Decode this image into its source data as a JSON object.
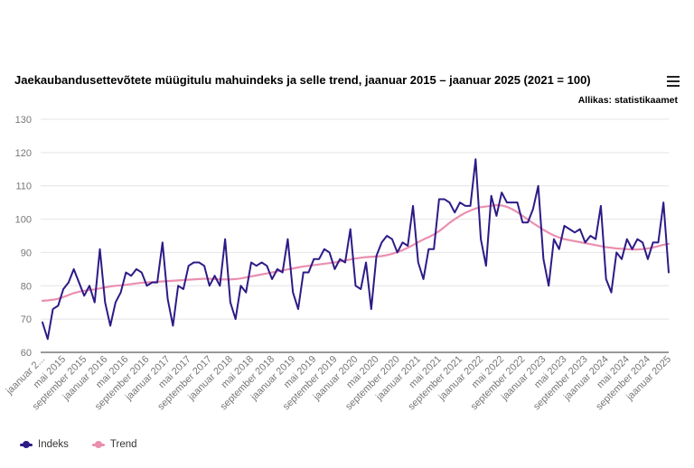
{
  "header": {
    "title": "Jaekaubandusettevõtete müügitulu mahuindeks ja selle trend, jaanuar 2015 – jaanuar 2025 (2021 = 100)",
    "source": "Allikas: statistikaamet",
    "menu_icon": "hamburger-menu-icon"
  },
  "legend": {
    "items": [
      {
        "label": "Indeks",
        "color": "#2e1a87"
      },
      {
        "label": "Trend",
        "color": "#ea8fb0"
      }
    ]
  },
  "chart_data": {
    "type": "line",
    "title": "Jaekaubandusettevõtete müügitulu mahuindeks ja selle trend, jaanuar 2015 – jaanuar 2025 (2021 = 100)",
    "ylim": [
      60,
      130
    ],
    "yticks": [
      60,
      70,
      80,
      90,
      100,
      110,
      120,
      130
    ],
    "x_start": "jaanuar 2015",
    "x_end": "jaanuar 2025",
    "x_tick_labels": [
      "jaanuar 2...",
      "mai 2015",
      "september 2015",
      "jaanuar 2016",
      "mai 2016",
      "september 2016",
      "jaanuar 2017",
      "mai 2017",
      "september 2017",
      "jaanuar 2018",
      "mai 2018",
      "september 2018",
      "jaanuar 2019",
      "mai 2019",
      "september 2019",
      "jaanuar 2020",
      "mai 2020",
      "september 2020",
      "jaanuar 2021",
      "mai 2021",
      "september 2021",
      "jaanuar 2022",
      "mai 2022",
      "september 2022",
      "jaanuar 2023",
      "mai 2023",
      "september 2023",
      "jaanuar 2024",
      "mai 2024",
      "september 2024",
      "jaanuar 2025"
    ],
    "grid": true,
    "legend_position": "bottom-left",
    "series": [
      {
        "name": "Indeks",
        "color": "#2e1a87",
        "values": [
          69,
          64,
          73,
          74,
          79,
          81,
          85,
          81,
          77,
          80,
          75,
          91,
          75,
          68,
          75,
          78,
          84,
          83,
          85,
          84,
          80,
          81,
          81,
          93,
          76,
          68,
          80,
          79,
          86,
          87,
          87,
          86,
          80,
          83,
          80,
          94,
          75,
          70,
          80,
          78,
          87,
          86,
          87,
          86,
          82,
          85,
          84,
          94,
          78,
          73,
          84,
          84,
          88,
          88,
          91,
          90,
          85,
          88,
          87,
          97,
          80,
          79,
          87,
          73,
          89,
          93,
          95,
          94,
          90,
          93,
          92,
          104,
          87,
          82,
          91,
          91,
          106,
          106,
          105,
          102,
          105,
          104,
          104,
          118,
          94,
          86,
          107,
          101,
          108,
          105,
          105,
          105,
          99,
          99,
          103,
          110,
          88,
          80,
          94,
          91,
          98,
          97,
          96,
          97,
          93,
          95,
          94,
          104,
          82,
          78,
          90,
          88,
          94,
          91,
          94,
          93,
          88,
          93,
          93,
          105,
          84
        ]
      },
      {
        "name": "Trend",
        "color": "#ea8fb0",
        "values": [
          75.5,
          75.6,
          75.8,
          76.1,
          76.6,
          77.2,
          77.8,
          78.2,
          78.5,
          78.7,
          78.9,
          79.2,
          79.5,
          79.8,
          80.0,
          80.1,
          80.3,
          80.5,
          80.7,
          80.9,
          81.0,
          81.1,
          81.2,
          81.3,
          81.4,
          81.5,
          81.6,
          81.7,
          81.8,
          81.9,
          82.0,
          82.1,
          82.1,
          82.0,
          81.9,
          81.9,
          81.9,
          82.0,
          82.2,
          82.5,
          82.8,
          83.1,
          83.4,
          83.7,
          84.0,
          84.3,
          84.6,
          84.9,
          85.2,
          85.5,
          85.8,
          86.0,
          86.2,
          86.4,
          86.6,
          86.8,
          87.0,
          87.3,
          87.6,
          87.9,
          88.2,
          88.4,
          88.6,
          88.7,
          88.8,
          88.9,
          89.2,
          89.6,
          90.1,
          90.7,
          91.4,
          92.2,
          93.1,
          93.9,
          94.6,
          95.4,
          96.4,
          97.6,
          98.9,
          100.0,
          101.0,
          101.9,
          102.6,
          103.2,
          103.6,
          103.8,
          104.0,
          104.2,
          104.1,
          103.7,
          103.0,
          102.1,
          101.0,
          99.9,
          98.8,
          97.8,
          96.8,
          95.9,
          95.1,
          94.5,
          94.0,
          93.7,
          93.4,
          93.1,
          92.8,
          92.5,
          92.2,
          91.9,
          91.6,
          91.4,
          91.2,
          91.1,
          91.0,
          90.9,
          90.9,
          91.0,
          91.2,
          91.5,
          91.9,
          92.3,
          92.6
        ]
      }
    ]
  }
}
